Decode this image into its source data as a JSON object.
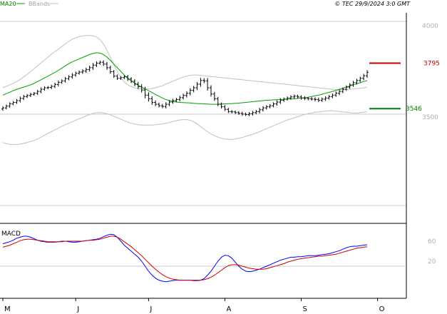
{
  "header": {
    "ma_label": "MA20",
    "bb_label": "BBands",
    "copyright": "© TEC 29/9/2024 3:0 GMT"
  },
  "macd_title": "MACD",
  "colors": {
    "price": "#000000",
    "ma": "#00a000",
    "bands": "#c0c0c0",
    "resistance": "#c00000",
    "support": "#008000",
    "macd": "#0000ff",
    "signal": "#d00000",
    "grid": "#c8c8c8"
  },
  "chart_data": [
    {
      "type": "ohlc",
      "title": "",
      "y_ticks": [
        3500,
        4000
      ],
      "y_tick_labels": [
        "3500",
        "4000"
      ],
      "ylim": [
        3180,
        4080
      ],
      "x_tick_labels": [
        "M",
        "J",
        "J",
        "A",
        "S",
        "O"
      ],
      "x_tick_index": [
        0,
        21,
        42,
        64,
        86,
        108
      ],
      "horizontal_levels": [
        {
          "name": "resistance",
          "value": 3795,
          "label": "3795"
        },
        {
          "name": "support",
          "value": 3546,
          "label": "3546"
        }
      ],
      "ma20": [
        3620,
        3628,
        3636,
        3644,
        3652,
        3658,
        3664,
        3670,
        3676,
        3684,
        3694,
        3704,
        3714,
        3724,
        3734,
        3744,
        3756,
        3768,
        3780,
        3792,
        3802,
        3810,
        3818,
        3826,
        3834,
        3842,
        3848,
        3852,
        3850,
        3842,
        3828,
        3810,
        3790,
        3770,
        3750,
        3730,
        3712,
        3698,
        3686,
        3674,
        3664,
        3654,
        3644,
        3634,
        3624,
        3614,
        3604,
        3596,
        3590,
        3586,
        3582,
        3580,
        3579,
        3578,
        3577,
        3575,
        3574,
        3573,
        3572,
        3571,
        3570,
        3570,
        3570,
        3571,
        3572,
        3573,
        3574,
        3575,
        3576,
        3578,
        3580,
        3582,
        3584,
        3586,
        3588,
        3590,
        3592,
        3593,
        3594,
        3595,
        3596,
        3597,
        3598,
        3599,
        3600,
        3602,
        3604,
        3606,
        3608,
        3612,
        3616,
        3620,
        3625,
        3630,
        3635,
        3640,
        3646,
        3652,
        3658,
        3664,
        3670,
        3676,
        3682,
        3688,
        3694,
        3700
      ],
      "bb_upper": [
        3660,
        3668,
        3676,
        3684,
        3694,
        3706,
        3720,
        3734,
        3748,
        3764,
        3780,
        3796,
        3812,
        3828,
        3844,
        3858,
        3872,
        3886,
        3900,
        3914,
        3926,
        3934,
        3940,
        3944,
        3946,
        3946,
        3944,
        3938,
        3924,
        3900,
        3866,
        3826,
        3786,
        3748,
        3716,
        3692,
        3676,
        3666,
        3660,
        3656,
        3654,
        3654,
        3654,
        3656,
        3660,
        3666,
        3672,
        3680,
        3688,
        3696,
        3704,
        3712,
        3718,
        3724,
        3728,
        3730,
        3730,
        3728,
        3726,
        3724,
        3722,
        3720,
        3718,
        3716,
        3714,
        3712,
        3710,
        3708,
        3706,
        3704,
        3702,
        3700,
        3698,
        3696,
        3694,
        3692,
        3690,
        3688,
        3686,
        3684,
        3682,
        3680,
        3678,
        3676,
        3674,
        3672,
        3670,
        3668,
        3666,
        3664,
        3662,
        3660,
        3658,
        3656,
        3654,
        3652,
        3650,
        3650,
        3650,
        3650,
        3652,
        3654,
        3656,
        3658,
        3660,
        3662
      ],
      "bb_lower": [
        3360,
        3355,
        3350,
        3350,
        3350,
        3352,
        3356,
        3360,
        3366,
        3372,
        3380,
        3390,
        3400,
        3410,
        3420,
        3430,
        3440,
        3450,
        3458,
        3466,
        3474,
        3482,
        3490,
        3498,
        3506,
        3514,
        3520,
        3524,
        3524,
        3522,
        3518,
        3512,
        3504,
        3496,
        3488,
        3480,
        3472,
        3466,
        3462,
        3458,
        3456,
        3456,
        3456,
        3456,
        3458,
        3460,
        3462,
        3466,
        3470,
        3476,
        3480,
        3484,
        3486,
        3486,
        3482,
        3474,
        3462,
        3448,
        3434,
        3420,
        3408,
        3398,
        3390,
        3384,
        3380,
        3378,
        3378,
        3380,
        3384,
        3388,
        3394,
        3400,
        3406,
        3412,
        3420,
        3428,
        3436,
        3444,
        3452,
        3460,
        3468,
        3476,
        3484,
        3490,
        3496,
        3502,
        3508,
        3514,
        3518,
        3522,
        3526,
        3528,
        3530,
        3532,
        3534,
        3534,
        3532,
        3530,
        3528,
        3526,
        3524,
        3522,
        3522,
        3524,
        3526,
        3530
      ],
      "close": [
        3550,
        3560,
        3572,
        3580,
        3590,
        3602,
        3612,
        3618,
        3624,
        3630,
        3640,
        3652,
        3660,
        3662,
        3668,
        3678,
        3690,
        3698,
        3710,
        3720,
        3730,
        3740,
        3746,
        3752,
        3760,
        3770,
        3784,
        3795,
        3800,
        3790,
        3770,
        3748,
        3724,
        3712,
        3716,
        3720,
        3708,
        3696,
        3680,
        3666,
        3648,
        3620,
        3600,
        3580,
        3570,
        3562,
        3558,
        3570,
        3582,
        3590,
        3596,
        3606,
        3618,
        3630,
        3646,
        3660,
        3680,
        3700,
        3698,
        3660,
        3626,
        3600,
        3570,
        3556,
        3542,
        3530,
        3528,
        3524,
        3520,
        3516,
        3514,
        3518,
        3524,
        3530,
        3540,
        3550,
        3556,
        3562,
        3572,
        3582,
        3592,
        3598,
        3604,
        3610,
        3614,
        3610,
        3604,
        3602,
        3600,
        3598,
        3596,
        3592,
        3598,
        3604,
        3612,
        3620,
        3630,
        3640,
        3652,
        3664,
        3676,
        3688,
        3700,
        3712,
        3726,
        3745
      ],
      "range": [
        28,
        24,
        26,
        22,
        24,
        30,
        26,
        22,
        24,
        20,
        26,
        28,
        24,
        22,
        26,
        28,
        30,
        24,
        28,
        26,
        30,
        26,
        24,
        28,
        30,
        32,
        34,
        30,
        26,
        30,
        34,
        32,
        28,
        26,
        24,
        26,
        30,
        28,
        32,
        36,
        40,
        50,
        44,
        38,
        30,
        26,
        28,
        32,
        30,
        28,
        26,
        30,
        28,
        32,
        34,
        30,
        34,
        40,
        36,
        44,
        40,
        34,
        30,
        28,
        26,
        24,
        24,
        22,
        24,
        26,
        24,
        26,
        28,
        26,
        30,
        28,
        26,
        24,
        26,
        28,
        30,
        26,
        24,
        26,
        28,
        24,
        26,
        28,
        24,
        26,
        28,
        30,
        26,
        28,
        24,
        26,
        28,
        30,
        28,
        26,
        28,
        30,
        28,
        26,
        30,
        34
      ]
    },
    {
      "type": "line",
      "title": "MACD",
      "y_ticks": [
        20,
        60
      ],
      "y_tick_labels": [
        "20",
        "60"
      ],
      "ylim": [
        -30,
        85
      ],
      "series": [
        {
          "name": "MACD",
          "values": [
            55,
            57,
            59,
            62,
            66,
            68,
            70,
            70,
            68,
            65,
            62,
            60,
            59,
            58,
            58,
            58,
            59,
            60,
            60,
            59,
            58,
            58,
            59,
            60,
            61,
            62,
            63,
            64,
            66,
            69,
            72,
            74,
            73,
            68,
            60,
            52,
            46,
            40,
            34,
            28,
            20,
            10,
            0,
            -8,
            -14,
            -18,
            -20,
            -21,
            -20,
            -19,
            -18,
            -18,
            -18,
            -18,
            -18,
            -19,
            -19,
            -18,
            -15,
            -8,
            0,
            10,
            20,
            28,
            32,
            31,
            26,
            18,
            10,
            4,
            0,
            -1,
            0,
            2,
            4,
            7,
            10,
            13,
            16,
            19,
            22,
            24,
            26,
            28,
            28,
            29,
            29,
            30,
            31,
            31,
            31,
            32,
            33,
            34,
            35,
            37,
            39,
            41,
            44,
            47,
            49,
            50,
            50,
            51,
            52,
            53
          ]
        },
        {
          "name": "Signal",
          "values": [
            48,
            50,
            52,
            55,
            58,
            61,
            63,
            64,
            64,
            63,
            62,
            61,
            60,
            59,
            59,
            59,
            59,
            59,
            60,
            60,
            60,
            60,
            60,
            60,
            61,
            62,
            62,
            63,
            64,
            66,
            68,
            70,
            70,
            68,
            64,
            59,
            54,
            49,
            43,
            37,
            31,
            24,
            17,
            10,
            4,
            -2,
            -7,
            -11,
            -14,
            -16,
            -17,
            -18,
            -18,
            -18,
            -18,
            -18,
            -18,
            -18,
            -17,
            -15,
            -12,
            -8,
            -3,
            2,
            7,
            11,
            13,
            13,
            12,
            10,
            8,
            6,
            5,
            4,
            4,
            4,
            5,
            7,
            9,
            11,
            13,
            15,
            18,
            20,
            22,
            24,
            25,
            26,
            27,
            28,
            29,
            30,
            30,
            31,
            32,
            33,
            34,
            36,
            38,
            40,
            42,
            44,
            46,
            47,
            48,
            49
          ]
        }
      ]
    }
  ]
}
